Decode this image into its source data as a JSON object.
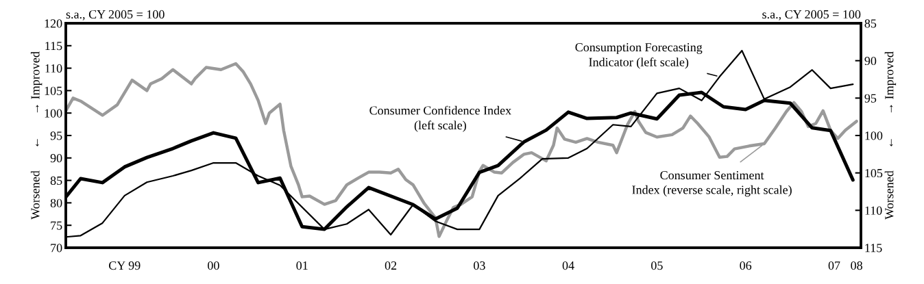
{
  "chart_data": {
    "type": "line",
    "xlim": [
      "1998-11-01",
      "2007-10-19"
    ],
    "xticks": [
      {
        "value": "1999-07-01",
        "label": "CY 99"
      },
      {
        "value": "2000-07-01",
        "label": "00"
      },
      {
        "value": "2001-07-01",
        "label": "01"
      },
      {
        "value": "2002-07-01",
        "label": "02"
      },
      {
        "value": "2003-07-01",
        "label": "03"
      },
      {
        "value": "2004-07-01",
        "label": "04"
      },
      {
        "value": "2005-07-01",
        "label": "05"
      },
      {
        "value": "2006-07-01",
        "label": "06"
      },
      {
        "value": "2007-07-01",
        "label": "07"
      },
      {
        "value": "2007-10-01",
        "label": "08"
      }
    ],
    "ylim": [
      70,
      120
    ],
    "yticks": [
      70,
      75,
      80,
      85,
      90,
      95,
      100,
      105,
      110,
      115,
      120
    ],
    "y2lim": [
      115,
      85
    ],
    "y2ticks": [
      85,
      90,
      95,
      100,
      105,
      110,
      115
    ],
    "ylabel": "Worsened       ←       → Improved",
    "y2label": "Worsened       ←       → Improved",
    "annotations": [
      "s.a., CY 2005 = 100",
      "s.a., CY 2005 = 100"
    ],
    "grid": false,
    "series": [
      {
        "name": "Consumer Sentiment\nIndex (reverse scale, right scale)",
        "color": "#9a9a9a",
        "axis": "y2",
        "x": [
          "1998-11-01",
          "1998-12-01",
          "1999-01-01",
          "1999-04-01",
          "1999-06-01",
          "1999-08-01",
          "1999-10-01",
          "1999-10-16",
          "1999-12-01",
          "2000-01-16",
          "2000-04-01",
          "2000-04-16",
          "2000-06-01",
          "2000-08-01",
          "2000-10-01",
          "2000-11-01",
          "2000-12-01",
          "2001-01-01",
          "2001-02-01",
          "2001-02-16",
          "2001-04-01",
          "2001-04-16",
          "2001-05-16",
          "2001-06-16",
          "2001-07-01",
          "2001-08-01",
          "2001-10-01",
          "2001-11-16",
          "2002-01-01",
          "2002-02-16",
          "2002-04-01",
          "2002-05-16",
          "2002-07-01",
          "2002-08-01",
          "2002-09-01",
          "2002-10-01",
          "2002-11-16",
          "2003-01-01",
          "2003-01-16",
          "2003-02-16",
          "2003-03-16",
          "2003-04-16",
          "2003-06-01",
          "2003-07-01",
          "2003-07-16",
          "2003-09-01",
          "2003-10-01",
          "2003-11-16",
          "2004-01-01",
          "2004-02-01",
          "2004-03-16",
          "2004-04-01",
          "2004-05-01",
          "2004-05-16",
          "2004-06-16",
          "2004-08-01",
          "2004-09-16",
          "2004-11-01",
          "2005-01-01",
          "2005-01-16",
          "2005-03-01",
          "2005-04-01",
          "2005-04-16",
          "2005-05-16",
          "2005-07-01",
          "2005-09-01",
          "2005-10-16",
          "2005-11-16",
          "2005-12-16",
          "2006-02-01",
          "2006-03-16",
          "2006-04-16",
          "2006-05-16",
          "2006-07-16",
          "2006-09-16",
          "2006-11-01",
          "2006-12-16",
          "2007-01-16",
          "2007-02-16",
          "2007-03-16",
          "2007-04-16",
          "2007-05-16",
          "2007-06-16",
          "2007-07-16",
          "2007-08-16",
          "2007-10-01"
        ],
        "values": [
          96.7,
          95.0,
          95.4,
          97.3,
          95.9,
          92.6,
          94.0,
          93.1,
          92.4,
          91.2,
          93.1,
          92.4,
          90.9,
          91.2,
          90.4,
          91.5,
          93.1,
          95.3,
          98.4,
          97.0,
          95.8,
          99.3,
          104.1,
          106.6,
          108.2,
          108.1,
          109.2,
          108.7,
          106.6,
          105.7,
          104.9,
          104.9,
          105.0,
          104.5,
          105.9,
          106.6,
          109.1,
          111.0,
          113.5,
          111.4,
          109.6,
          109.2,
          108.2,
          104.8,
          104.0,
          104.9,
          105.0,
          103.6,
          102.5,
          102.3,
          103.1,
          103.4,
          101.3,
          99.0,
          100.5,
          100.9,
          100.4,
          100.9,
          101.3,
          102.3,
          98.6,
          96.8,
          98.1,
          99.6,
          100.2,
          99.9,
          99.0,
          97.4,
          98.4,
          100.2,
          102.9,
          102.8,
          101.8,
          101.4,
          101.1,
          99.0,
          96.8,
          95.6,
          96.8,
          98.8,
          98.4,
          96.7,
          99.3,
          100.4,
          99.3,
          98.1
        ]
      },
      {
        "name": "Consumption Forecasting\nIndicator (left scale)",
        "color": "#000000",
        "x": [
          "1998-11-01",
          "1999-01-01",
          "1999-04-01",
          "1999-07-01",
          "1999-10-01",
          "2000-01-16",
          "2000-04-01",
          "2000-07-01",
          "2000-10-01",
          "2001-01-01",
          "2001-04-01",
          "2001-10-01",
          "2002-01-01",
          "2002-04-01",
          "2002-07-01",
          "2002-10-01",
          "2003-01-01",
          "2003-04-01",
          "2003-07-01",
          "2003-09-16",
          "2003-12-16",
          "2004-03-16",
          "2004-07-01",
          "2004-09-16",
          "2005-01-01",
          "2005-03-16",
          "2005-07-01",
          "2005-10-01",
          "2006-01-01",
          "2006-03-16",
          "2006-06-16",
          "2006-09-16",
          "2007-01-01",
          "2007-04-01",
          "2007-06-16",
          "2007-09-16"
        ],
        "values": [
          72.4,
          72.7,
          75.5,
          81.6,
          84.6,
          86.0,
          87.2,
          88.9,
          88.9,
          86.0,
          83.9,
          74.1,
          75.3,
          78.5,
          72.9,
          79.6,
          75.9,
          74.1,
          74.1,
          81.6,
          85.5,
          89.8,
          90.0,
          92.1,
          97.4,
          97.0,
          104.4,
          105.5,
          102.8,
          108.1,
          113.9,
          103.1,
          105.8,
          109.6,
          105.5,
          106.4
        ]
      },
      {
        "name": "Consumer Confidence Index\n(left scale)",
        "color": "#000000",
        "x": [
          "1998-11-01",
          "1999-01-01",
          "1999-04-01",
          "1999-07-01",
          "1999-10-01",
          "2000-01-16",
          "2000-04-01",
          "2000-07-01",
          "2000-10-01",
          "2001-01-01",
          "2001-04-01",
          "2001-07-01",
          "2001-10-01",
          "2002-01-01",
          "2002-04-01",
          "2002-10-01",
          "2003-01-01",
          "2003-04-01",
          "2003-07-01",
          "2003-09-16",
          "2004-01-01",
          "2004-04-01",
          "2004-07-01",
          "2004-09-16",
          "2005-01-16",
          "2005-03-16",
          "2005-07-01",
          "2005-10-01",
          "2006-01-01",
          "2006-04-01",
          "2006-07-01",
          "2006-09-16",
          "2007-01-01",
          "2007-04-01",
          "2007-06-16",
          "2007-09-16"
        ],
        "values": [
          81.3,
          85.4,
          84.5,
          88.0,
          90.1,
          92.1,
          93.8,
          95.6,
          94.4,
          84.5,
          85.5,
          74.7,
          74.1,
          79.1,
          83.4,
          79.6,
          76.4,
          78.8,
          86.8,
          88.3,
          93.6,
          96.2,
          100.2,
          98.8,
          99.0,
          100.0,
          98.7,
          104.0,
          104.6,
          101.4,
          100.8,
          102.8,
          102.2,
          96.7,
          96.1,
          85.1
        ]
      }
    ]
  }
}
